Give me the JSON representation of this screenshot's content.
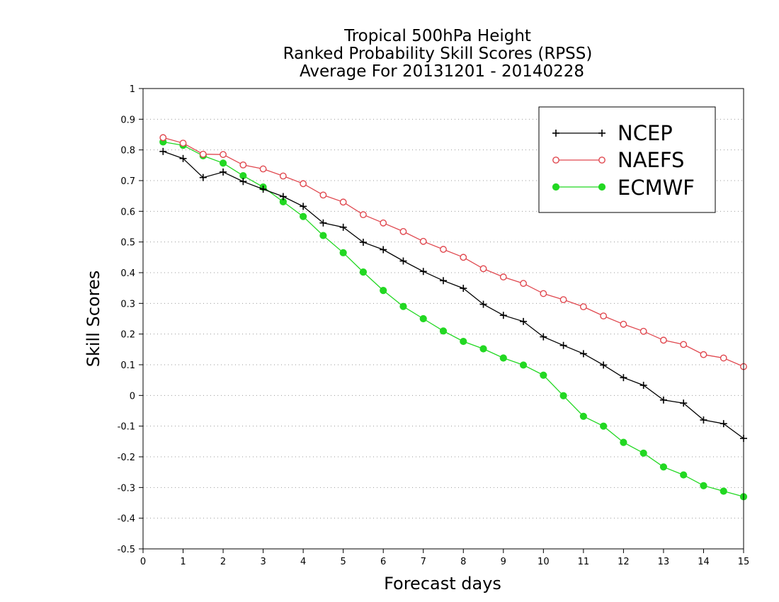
{
  "chart_data": {
    "type": "line",
    "title": [
      "Tropical 500hPa Height",
      "Ranked Probability Skill Scores (RPSS)",
      "Average For 20131201 - 20140228"
    ],
    "xlabel": "Forecast days",
    "ylabel": "Skill Scores",
    "xlim": [
      0,
      15
    ],
    "ylim": [
      -0.5,
      1
    ],
    "x_ticks": [
      "0",
      "1",
      "2",
      "3",
      "4",
      "5",
      "6",
      "7",
      "8",
      "9",
      "10",
      "11",
      "12",
      "13",
      "14",
      "15"
    ],
    "y_ticks": [
      "-0.5",
      "-0.4",
      "-0.3",
      "-0.2",
      "-0.1",
      "0",
      "0.1",
      "0.2",
      "0.3",
      "0.4",
      "0.5",
      "0.6",
      "0.7",
      "0.8",
      "0.9",
      "1"
    ],
    "grid": "horizontal dotted",
    "legend_position": "top-right",
    "x": [
      0.5,
      1.0,
      1.5,
      2.0,
      2.5,
      3.0,
      3.5,
      4.0,
      4.5,
      5.0,
      5.5,
      6.0,
      6.5,
      7.0,
      7.5,
      8.0,
      8.5,
      9.0,
      9.5,
      10.0,
      10.5,
      11.0,
      11.5,
      12.0,
      12.5,
      13.0,
      13.5,
      14.0,
      14.5,
      15.0
    ],
    "series": [
      {
        "name": "NCEP",
        "color": "#000000",
        "marker": "plus",
        "values": [
          0.795,
          0.772,
          0.71,
          0.728,
          0.697,
          0.672,
          0.648,
          0.616,
          0.562,
          0.548,
          0.499,
          0.475,
          0.438,
          0.404,
          0.374,
          0.349,
          0.297,
          0.261,
          0.241,
          0.191,
          0.163,
          0.136,
          0.099,
          0.058,
          0.033,
          -0.015,
          -0.025,
          -0.08,
          -0.092,
          -0.14
        ]
      },
      {
        "name": "NAEFS",
        "color": "#e0484f",
        "marker": "open-circle",
        "values": [
          0.84,
          0.822,
          0.786,
          0.785,
          0.751,
          0.738,
          0.715,
          0.69,
          0.653,
          0.63,
          0.589,
          0.562,
          0.534,
          0.502,
          0.476,
          0.45,
          0.413,
          0.386,
          0.365,
          0.332,
          0.312,
          0.289,
          0.259,
          0.232,
          0.209,
          0.18,
          0.166,
          0.133,
          0.122,
          0.094
        ]
      },
      {
        "name": "ECMWF",
        "color": "#22d822",
        "marker": "filled-circle",
        "values": [
          0.826,
          0.815,
          0.781,
          0.757,
          0.716,
          0.679,
          0.631,
          0.583,
          0.521,
          0.465,
          0.402,
          0.342,
          0.29,
          0.25,
          0.21,
          0.176,
          0.152,
          0.122,
          0.099,
          0.066,
          -0.001,
          -0.068,
          -0.1,
          -0.153,
          -0.188,
          -0.233,
          -0.259,
          -0.294,
          -0.312,
          -0.33
        ]
      }
    ]
  }
}
